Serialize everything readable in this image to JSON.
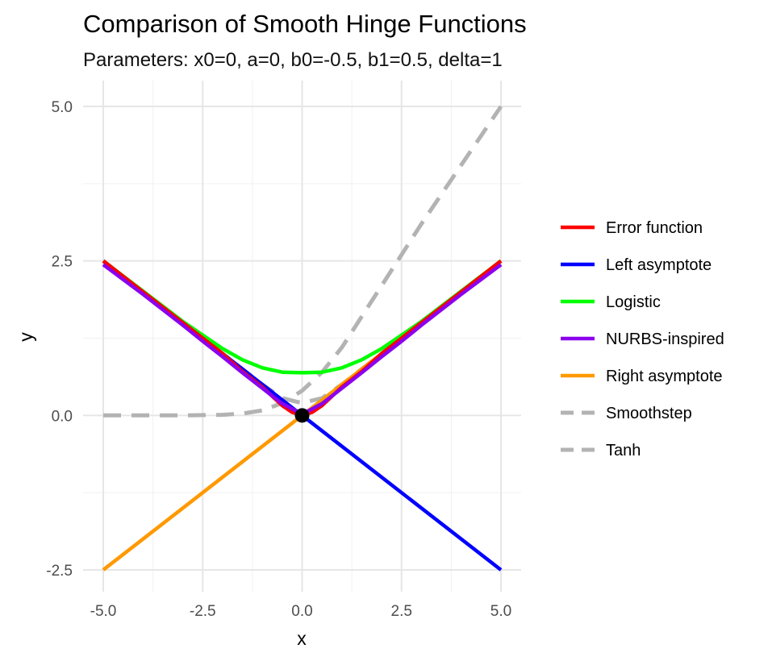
{
  "chart_data": {
    "type": "line",
    "title": "Comparison of Smooth Hinge Functions",
    "subtitle": "Parameters: x0=0, a=0, b0=-0.5, b1=0.5, delta=1",
    "xlabel": "x",
    "ylabel": "y",
    "xlim": [
      -5,
      5
    ],
    "ylim": [
      -2.5,
      5
    ],
    "x_ticks": [
      -5,
      -2.5,
      0,
      2.5,
      5
    ],
    "x_tick_labels": [
      "-5.0",
      "-2.5",
      "0.0",
      "2.5",
      "5.0"
    ],
    "y_ticks": [
      -2.5,
      0,
      2.5,
      5
    ],
    "y_tick_labels": [
      "-2.5",
      "0.0",
      "2.5",
      "5.0"
    ],
    "grid": true,
    "legend_position": "right",
    "series": [
      {
        "name": "Error function",
        "color": "#ff0000",
        "dash": false,
        "x": [
          -5,
          -4,
          -3,
          -2.5,
          -2,
          -1.5,
          -1,
          -0.75,
          -0.5,
          -0.25,
          0,
          0.25,
          0.5,
          0.75,
          1,
          1.5,
          2,
          2.5,
          3,
          4,
          5
        ],
        "y": [
          2.5,
          2,
          1.5,
          1.25,
          1.0,
          0.71,
          0.46,
          0.31,
          0.16,
          0.05,
          0.0,
          0.05,
          0.16,
          0.31,
          0.46,
          0.71,
          1.0,
          1.25,
          1.5,
          2,
          2.5
        ]
      },
      {
        "name": "Left asymptote",
        "color": "#0000ff",
        "dash": false,
        "x": [
          -5,
          5
        ],
        "y": [
          2.5,
          -2.5
        ]
      },
      {
        "name": "Logistic",
        "color": "#00ff00",
        "dash": false,
        "x": [
          -5,
          -4,
          -3,
          -2.5,
          -2,
          -1.5,
          -1,
          -0.5,
          0,
          0.5,
          1,
          1.5,
          2,
          2.5,
          3,
          4,
          5
        ],
        "y": [
          2.5,
          2.01,
          1.52,
          1.3,
          1.08,
          0.9,
          0.77,
          0.7,
          0.69,
          0.7,
          0.77,
          0.9,
          1.08,
          1.3,
          1.52,
          2.01,
          2.5
        ]
      },
      {
        "name": "NURBS-inspired",
        "color": "#8b00ee",
        "dash": false,
        "x": [
          -5,
          -4,
          -3,
          -2.5,
          -2,
          -1.5,
          -1,
          -0.5,
          0,
          0.5,
          1,
          1.5,
          2,
          2.5,
          3,
          4,
          5
        ],
        "y": [
          2.44,
          1.96,
          1.46,
          1.2,
          0.95,
          0.69,
          0.44,
          0.19,
          0.02,
          0.19,
          0.44,
          0.69,
          0.95,
          1.2,
          1.46,
          1.96,
          2.44
        ]
      },
      {
        "name": "Right asymptote",
        "color": "#ff9900",
        "dash": false,
        "x": [
          -5,
          5
        ],
        "y": [
          -2.5,
          2.5
        ]
      },
      {
        "name": "Smoothstep",
        "color": "#b3b3b3",
        "dash": true,
        "x": [
          -5,
          -3,
          -2,
          -1.5,
          -1,
          -0.5,
          0,
          0.5,
          1,
          1.5,
          2,
          3,
          4,
          5
        ],
        "y": [
          0,
          0,
          0.01,
          0.03,
          0.08,
          0.2,
          0.4,
          0.7,
          1.1,
          1.6,
          2.1,
          3.1,
          4.05,
          5.0
        ]
      },
      {
        "name": "Tanh",
        "color": "#b3b3b3",
        "dash": true,
        "x": [
          -5,
          -4,
          -3,
          -2,
          -1,
          -0.5,
          0,
          0.5,
          1,
          2,
          3,
          4,
          5
        ],
        "y": [
          2.5,
          2.0,
          1.5,
          1.0,
          0.5,
          0.28,
          0.2,
          0.28,
          0.5,
          1.0,
          1.5,
          2.0,
          2.5
        ]
      }
    ],
    "points": [
      {
        "x": 0,
        "y": 0,
        "color": "#000000"
      }
    ]
  }
}
